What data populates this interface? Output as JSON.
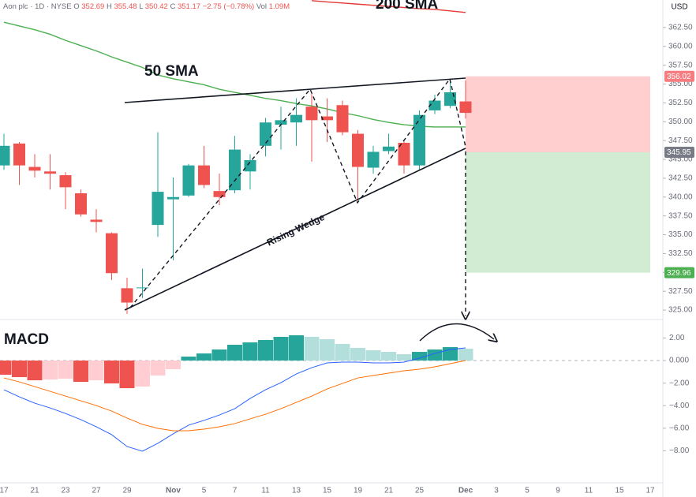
{
  "header": {
    "symbol": "Aon plc · 1D · NYSE",
    "ohlc_labels": [
      "O",
      "H",
      "L",
      "C"
    ],
    "change": "−2.75 (−0.78%)",
    "volume_label": "Vol",
    "volume": "1.09M",
    "currency": "USD"
  },
  "chart_data": [
    {
      "type": "candlestick",
      "up_color": "#26a69a",
      "down_color": "#ef5350",
      "open": [
        344.2,
        347.1,
        344.0,
        343.4,
        342.9,
        340.5,
        337.0,
        335.2,
        327.9,
        327.9,
        336.3,
        339.7,
        340.2,
        344.2,
        340.8,
        340.9,
        343.4,
        346.8,
        349.6,
        349.9,
        352.0,
        350.7,
        352.2,
        348.4,
        343.9,
        346.1,
        347.2,
        344.2,
        351.5,
        352.1,
        352.69,
        null,
        null,
        null,
        null,
        null,
        null,
        null,
        null,
        null,
        null,
        null,
        null
      ],
      "high": [
        348.4,
        347.3,
        345.7,
        345.7,
        343.3,
        341.0,
        338.4,
        335.3,
        329.3,
        330.5,
        348.6,
        342.6,
        344.4,
        346.8,
        343.1,
        348.1,
        345.7,
        350.5,
        352.0,
        353.1,
        353.8,
        353.1,
        352.8,
        348.9,
        346.8,
        348.4,
        347.5,
        351.5,
        353.6,
        355.7,
        355.48,
        null,
        null,
        null,
        null,
        null,
        null,
        null,
        null,
        null,
        null,
        null,
        null
      ],
      "low": [
        343.6,
        341.6,
        342.6,
        341.0,
        338.4,
        337.4,
        335.3,
        329.0,
        324.5,
        326.6,
        334.7,
        331.6,
        340.0,
        341.2,
        338.9,
        340.5,
        341.0,
        345.4,
        346.3,
        346.8,
        344.7,
        347.3,
        348.2,
        339.5,
        343.1,
        345.7,
        343.1,
        343.6,
        351.0,
        351.8,
        350.42,
        null,
        null,
        null,
        null,
        null,
        null,
        null,
        null,
        null,
        null,
        null,
        null
      ],
      "close": [
        346.8,
        344.2,
        343.5,
        343.1,
        341.3,
        337.7,
        336.7,
        329.9,
        326.0,
        328.0,
        340.7,
        340.0,
        344.2,
        341.6,
        340.0,
        346.3,
        344.9,
        349.9,
        350.2,
        350.9,
        350.2,
        350.2,
        348.6,
        344.0,
        346.0,
        346.7,
        344.2,
        350.9,
        352.8,
        353.9,
        351.17,
        null,
        null,
        null,
        null,
        null,
        null,
        null,
        null,
        null,
        null,
        null,
        null
      ],
      "lines": [
        {
          "label": "50 SMA",
          "color": "#4caf50",
          "values": [
            363.2,
            362.7,
            362.2,
            361.6,
            360.8,
            360.1,
            359.4,
            358.6,
            357.9,
            357.2,
            356.2,
            355.7,
            355.3,
            354.9,
            354.3,
            353.9,
            353.5,
            353.1,
            352.8,
            352.4,
            352.1,
            351.7,
            351.2,
            350.8,
            350.3,
            349.9,
            349.6,
            349.4,
            349.3,
            349.3,
            349.3,
            null,
            null,
            null,
            null,
            null,
            null,
            null,
            null,
            null,
            null,
            null,
            null
          ]
        },
        {
          "label": "200 SMA",
          "color": "#e53935",
          "values": [
            null,
            null,
            null,
            null,
            null,
            null,
            null,
            null,
            null,
            null,
            null,
            null,
            null,
            null,
            null,
            null,
            null,
            null,
            null,
            null,
            366.06,
            365.9,
            365.75,
            365.6,
            365.45,
            365.3,
            365.15,
            365.0,
            364.9,
            364.7,
            364.5,
            null,
            null,
            null,
            null,
            null,
            null,
            null,
            null,
            null,
            null,
            null,
            null
          ]
        }
      ],
      "annotation": "Rising Wedge",
      "position": {
        "target": 356.02,
        "entry": 345.95,
        "stop": 329.96
      },
      "ylim": [
        323.75,
        366.15
      ],
      "yticks": [
        {
          "value": 325,
          "label": "325.00"
        },
        {
          "value": 327.5,
          "label": "327.50"
        },
        {
          "value": 330,
          "label": "330.00"
        },
        {
          "value": 332.5,
          "label": "332.50"
        },
        {
          "value": 335,
          "label": "335.00"
        },
        {
          "value": 337.5,
          "label": "337.50"
        },
        {
          "value": 340,
          "label": "340.00"
        },
        {
          "value": 342.5,
          "label": "342.50"
        },
        {
          "value": 345,
          "label": "345.00"
        },
        {
          "value": 347.5,
          "label": "347.50"
        },
        {
          "value": 350,
          "label": "350.00"
        },
        {
          "value": 352.5,
          "label": "352.50"
        },
        {
          "value": 355,
          "label": "355.00"
        },
        {
          "value": 357.5,
          "label": "357.50"
        },
        {
          "value": 360,
          "label": "360.00"
        },
        {
          "value": 362.5,
          "label": "362.50"
        }
      ]
    },
    {
      "type": "macd",
      "title": "MACD",
      "categories": [
        "17",
        null,
        "21",
        null,
        "23",
        null,
        "27",
        null,
        "29",
        null,
        null,
        "Nov",
        null,
        "5",
        null,
        "7",
        null,
        "11",
        null,
        "13",
        null,
        "15",
        null,
        "19",
        null,
        "21",
        null,
        "25",
        null,
        null,
        "Dec",
        null,
        "3",
        null,
        "5",
        null,
        "9",
        null,
        "11",
        null,
        "15",
        null,
        "17"
      ],
      "histogram": [
        -1.26,
        -1.47,
        -1.75,
        -1.68,
        -1.61,
        -1.89,
        -1.75,
        -2.03,
        -2.45,
        -2.31,
        -1.33,
        -0.77,
        0.35,
        0.63,
        0.98,
        1.4,
        1.61,
        1.82,
        2.1,
        2.24,
        2.1,
        1.89,
        1.47,
        1.12,
        0.91,
        0.77,
        0.56,
        0.77,
        0.98,
        1.19,
        1.05,
        null,
        null,
        null,
        null,
        null,
        null,
        null,
        null,
        null,
        null,
        null,
        null
      ],
      "colors": [
        "#ef5350",
        "#ef5350",
        "#ef5350",
        "#ffcdd2",
        "#ffcdd2",
        "#ef5350",
        "#ffcdd2",
        "#ef5350",
        "#ef5350",
        "#ffcdd2",
        "#ffcdd2",
        "#ffcdd2",
        "#26a69a",
        "#26a69a",
        "#26a69a",
        "#26a69a",
        "#26a69a",
        "#26a69a",
        "#26a69a",
        "#26a69a",
        "#b2dfdb",
        "#b2dfdb",
        "#b2dfdb",
        "#b2dfdb",
        "#b2dfdb",
        "#b2dfdb",
        "#b2dfdb",
        "#26a69a",
        "#26a69a",
        "#26a69a",
        "#b2dfdb",
        null,
        null,
        null,
        null,
        null,
        null,
        null,
        null,
        null,
        null,
        null,
        null
      ],
      "lines": [
        {
          "color": "#2962ff",
          "values": [
            -2.59,
            -3.22,
            -3.78,
            -4.2,
            -4.69,
            -5.24,
            -5.87,
            -6.57,
            -7.62,
            -8.04,
            -7.34,
            -6.5,
            -5.73,
            -5.31,
            -4.83,
            -4.27,
            -3.36,
            -2.59,
            -1.96,
            -1.19,
            -0.63,
            -0.21,
            -0.14,
            -0.14,
            -0.21,
            -0.21,
            -0.14,
            0.21,
            0.63,
            0.98,
            1.12,
            null,
            null,
            null,
            null,
            null,
            null,
            null,
            null,
            null,
            null,
            null,
            null
          ]
        },
        {
          "color": "#ff6d00",
          "values": [
            -1.54,
            -1.89,
            -2.31,
            -2.73,
            -3.15,
            -3.57,
            -3.99,
            -4.48,
            -5.1,
            -5.66,
            -6.01,
            -6.22,
            -6.22,
            -6.08,
            -5.87,
            -5.59,
            -5.17,
            -4.76,
            -4.27,
            -3.71,
            -3.15,
            -2.52,
            -2.03,
            -1.54,
            -1.33,
            -1.12,
            -0.91,
            -0.77,
            -0.56,
            -0.28,
            0.0,
            null,
            null,
            null,
            null,
            null,
            null,
            null,
            null,
            null,
            null,
            null,
            null
          ]
        }
      ],
      "ylim": [
        -10.84,
        3.64
      ],
      "yticks": [
        {
          "value": 2,
          "label": "2.00"
        },
        {
          "value": 0,
          "label": "0.000"
        },
        {
          "value": -2,
          "label": "−2.00"
        },
        {
          "value": -4,
          "label": "−4.00"
        },
        {
          "value": -6,
          "label": "−6.00"
        },
        {
          "value": -8,
          "label": "−8.00"
        }
      ]
    }
  ]
}
